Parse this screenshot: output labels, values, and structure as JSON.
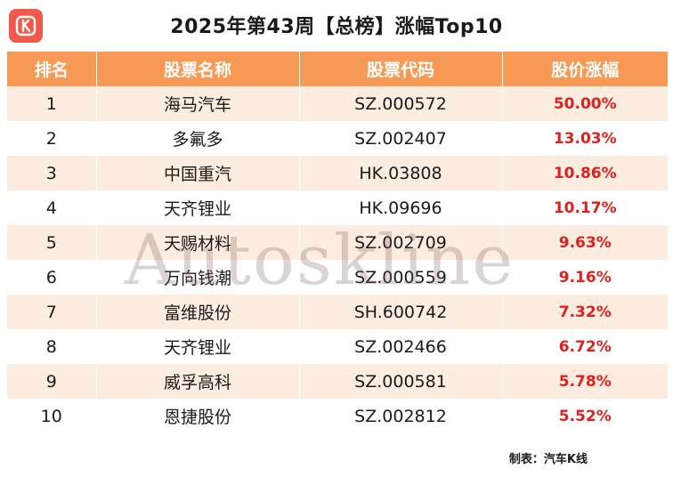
{
  "header": {
    "logo_letter": "K",
    "title": "2025年第43周【总榜】涨幅Top10"
  },
  "table": {
    "columns": [
      "排名",
      "股票名称",
      "股票代码",
      "股价涨幅"
    ],
    "rows": [
      {
        "rank": "1",
        "name": "海马汽车",
        "code": "SZ.000572",
        "change": "50.00%"
      },
      {
        "rank": "2",
        "name": "多氟多",
        "code": "SZ.002407",
        "change": "13.03%"
      },
      {
        "rank": "3",
        "name": "中国重汽",
        "code": "HK.03808",
        "change": "10.86%"
      },
      {
        "rank": "4",
        "name": "天齐锂业",
        "code": "HK.09696",
        "change": "10.17%"
      },
      {
        "rank": "5",
        "name": "天赐材料",
        "code": "SZ.002709",
        "change": "9.63%"
      },
      {
        "rank": "6",
        "name": "万向钱潮",
        "code": "SZ.000559",
        "change": "9.16%"
      },
      {
        "rank": "7",
        "name": "富维股份",
        "code": "SH.600742",
        "change": "7.32%"
      },
      {
        "rank": "8",
        "name": "天齐锂业",
        "code": "SZ.002466",
        "change": "6.72%"
      },
      {
        "rank": "9",
        "name": "威孚高科",
        "code": "SZ.000581",
        "change": "5.78%"
      },
      {
        "rank": "10",
        "name": "恩捷股份",
        "code": "SZ.002812",
        "change": "5.52%"
      }
    ]
  },
  "watermark": "Autoskline",
  "credit": "制表：汽车K线",
  "colors": {
    "header_bg": "#f79a55",
    "row_alt_bg": "#fdece0",
    "change_text": "#e0201c",
    "logo_bg": "#f15a4a"
  }
}
